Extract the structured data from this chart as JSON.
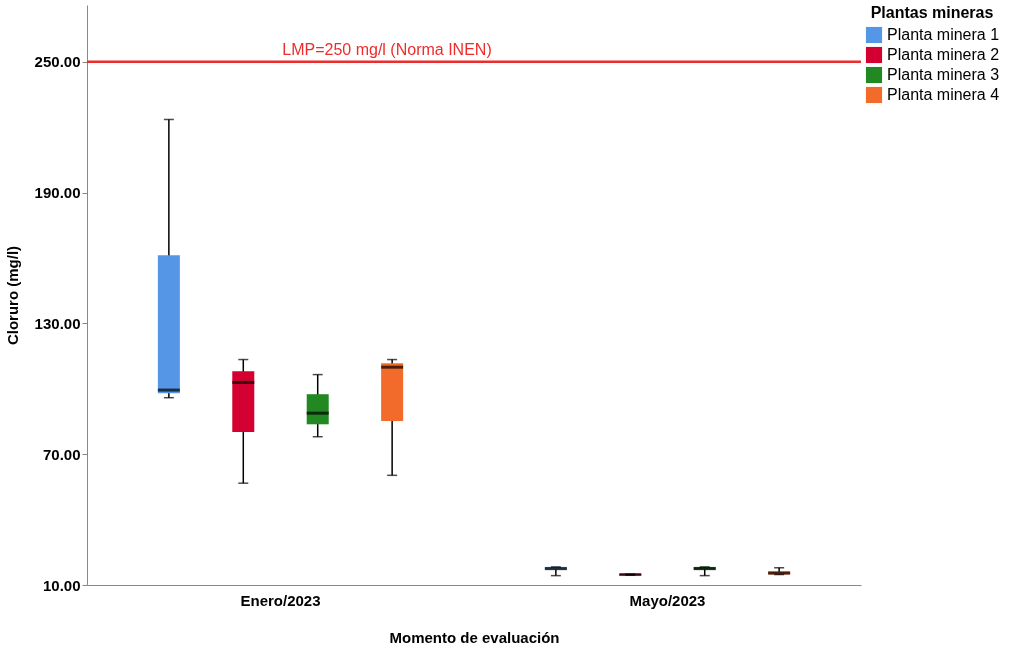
{
  "chart_data": {
    "type": "box",
    "xlabel": "Momento de evaluación",
    "ylabel": "Cloruro (mg/l)",
    "legend_title": "Plantas mineras",
    "categories": [
      "Enero/2023",
      "Mayo/2023"
    ],
    "series": [
      {
        "name": "Planta minera 1",
        "color": "#5596e6",
        "boxes": [
          {
            "low": 95.9,
            "q1": 97.9,
            "median": 99.4,
            "q3": 161.2,
            "high": 223.5
          },
          {
            "low": 14.3,
            "q1": 17,
            "median": 17.5,
            "q3": 18.3,
            "high": 18.3
          }
        ]
      },
      {
        "name": "Planta minera 2",
        "color": "#d50032",
        "boxes": [
          {
            "low": 56.7,
            "q1": 80.2,
            "median": 102.9,
            "q3": 108.0,
            "high": 113.4
          },
          {
            "low": 14.5,
            "q1": 14.5,
            "median": 14.8,
            "q3": 15,
            "high": 15
          }
        ]
      },
      {
        "name": "Planta minera 3",
        "color": "#228822",
        "boxes": [
          {
            "low": 78.0,
            "q1": 83.7,
            "median": 88.8,
            "q3": 97.5,
            "high": 106.5
          },
          {
            "low": 14.3,
            "q1": 17,
            "median": 17.5,
            "q3": 18.3,
            "high": 18.3
          }
        ]
      },
      {
        "name": "Planta minera 4",
        "color": "#f26b2a",
        "boxes": [
          {
            "low": 60.3,
            "q1": 85.2,
            "median": 109.9,
            "q3": 111.7,
            "high": 113.4
          },
          {
            "low": 14.8,
            "q1": 14.8,
            "median": 15.5,
            "q3": 16.2,
            "high": 17.9
          }
        ]
      }
    ],
    "ylim": [
      10,
      276
    ],
    "yticks": [
      {
        "value": 10,
        "label": "10.00"
      },
      {
        "value": 70,
        "label": "70.00"
      },
      {
        "value": 130,
        "label": "130.00"
      },
      {
        "value": 190,
        "label": "190.00"
      },
      {
        "value": 250,
        "label": "250.00"
      }
    ],
    "ref_lines": [
      {
        "axis": "y",
        "value": 250,
        "label": "LMP=250 mg/l (Norma INEN)",
        "color": "#ee2c2c"
      }
    ],
    "grid": false,
    "legend": "top right"
  }
}
